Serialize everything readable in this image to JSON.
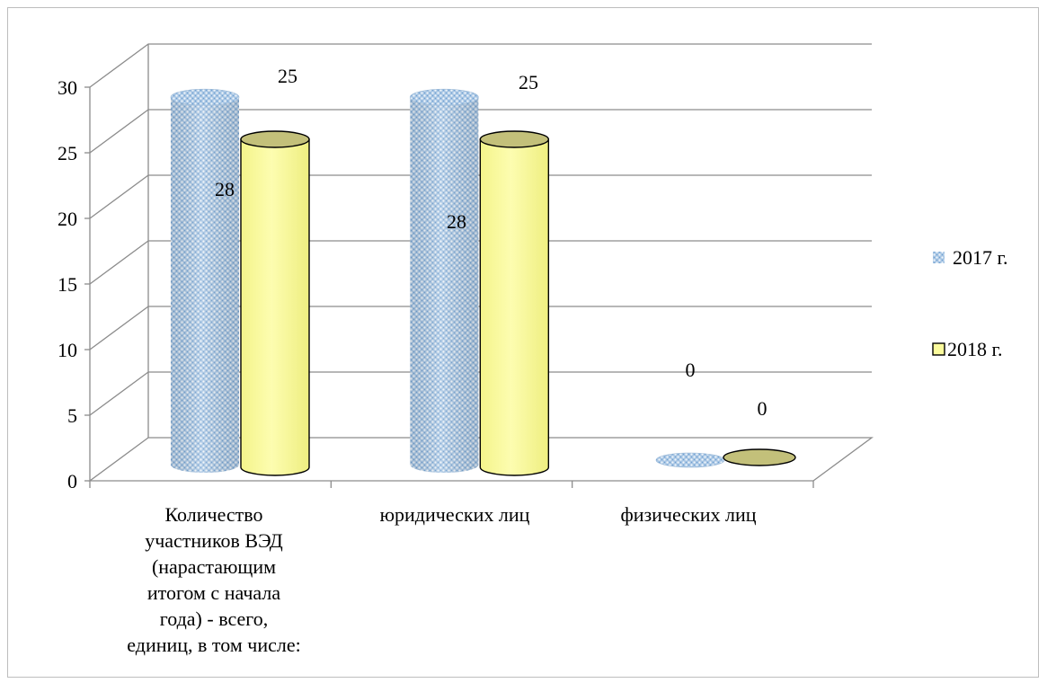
{
  "chart_data": {
    "type": "bar",
    "style": "3d-cylinder",
    "categories": [
      [
        "Количество",
        "участников ВЭД",
        "(нарастающим",
        "итогом с начала",
        "года) - всего,",
        "единиц, в том числе:"
      ],
      [
        "юридических лиц"
      ],
      [
        "физических лиц"
      ]
    ],
    "series": [
      {
        "name": "2017 г.",
        "values": [
          28,
          28,
          0
        ],
        "color": "#9dbfe0",
        "pattern": "diamond-dots"
      },
      {
        "name": "2018 г.",
        "values": [
          25,
          25,
          0
        ],
        "color": "#fbfb9c",
        "top_color": "#c3c07a"
      }
    ],
    "ylim": [
      0,
      30
    ],
    "yticks": [
      0,
      5,
      10,
      15,
      20,
      25,
      30
    ],
    "grid": true,
    "legend": "right",
    "title": "",
    "xlabel": "",
    "ylabel": ""
  }
}
